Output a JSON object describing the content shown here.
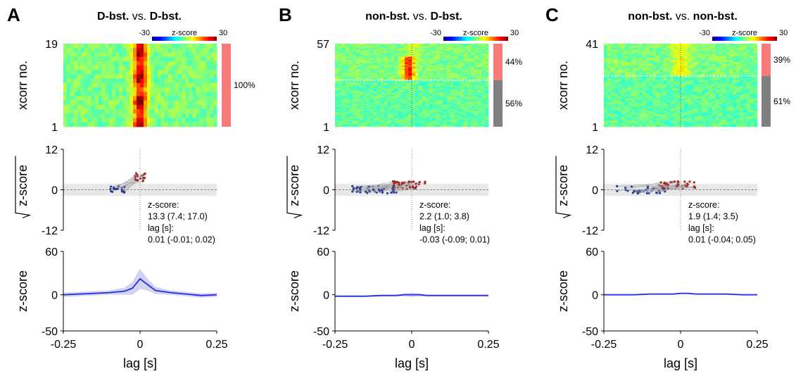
{
  "colors": {
    "positive": "#f77b7b",
    "negative": "#808080",
    "line": "#1f2ee6",
    "band": "#c8c8ee",
    "dot_neg": "#2c3d8f",
    "dot_pos": "#a02828"
  },
  "chart_data": [
    {
      "type": "heatmap+scatter+line",
      "letter": "A",
      "title": {
        "part1": "D-bst.",
        "mid": " vs. ",
        "part2": "D-bst."
      },
      "colorbar": {
        "min_label": "-30",
        "label": "z-score",
        "max_label": "30"
      },
      "heatmap": {
        "ylabel": "xcorr no.",
        "y_top_label": "19",
        "y_bottom_label": "1",
        "n_rows": 19,
        "positive_fraction": 1.0,
        "segments": [
          {
            "label": "100%",
            "fraction": 1.0,
            "class": "positive"
          }
        ],
        "pattern": "strong"
      },
      "scatter": {
        "ylabel": "z-score",
        "yticks": [
          "12",
          "0",
          "-12"
        ],
        "ylim": [
          -12,
          12
        ],
        "annotation": [
          "z-score:",
          "13.3 (7.4; 17.0)",
          "lag [s]:",
          "0.01 (-0.01; 0.02)"
        ],
        "n_pairs": 19,
        "spread": 0.03
      },
      "line": {
        "ylabel": "z-score",
        "yticks": [
          "60",
          "0",
          "-50"
        ],
        "ylim": [
          -50,
          60
        ],
        "xticks": [
          "-0.25",
          "0",
          "0.25"
        ],
        "xlim": [
          -0.25,
          0.25
        ],
        "xlabel": "lag [s]",
        "x": [
          -0.25,
          -0.2,
          -0.15,
          -0.1,
          -0.05,
          -0.025,
          0,
          0.025,
          0.05,
          0.1,
          0.15,
          0.2,
          0.25
        ],
        "y": [
          0,
          1,
          2,
          3,
          5,
          9,
          22,
          14,
          6,
          3,
          1,
          -1,
          0
        ],
        "band": [
          3,
          3,
          3,
          3,
          5,
          9,
          14,
          8,
          5,
          3,
          3,
          3,
          3
        ]
      }
    },
    {
      "type": "heatmap+scatter+line",
      "letter": "B",
      "title": {
        "part1": "non-bst.",
        "mid": " vs. ",
        "part2": "D-bst."
      },
      "colorbar": {
        "min_label": "-30",
        "label": "z-score",
        "max_label": "30"
      },
      "heatmap": {
        "ylabel": "xcorr no.",
        "y_top_label": "57",
        "y_bottom_label": "1",
        "n_rows": 57,
        "positive_fraction": 0.44,
        "segments": [
          {
            "label": "44%",
            "fraction": 0.44,
            "class": "positive"
          },
          {
            "label": "56%",
            "fraction": 0.56,
            "class": "negative"
          }
        ],
        "pattern": "medium"
      },
      "scatter": {
        "ylabel": "z-score",
        "yticks": [
          "12",
          "0",
          "-12"
        ],
        "ylim": [
          -12,
          12
        ],
        "annotation": [
          "z-score:",
          "2.2 (1.0; 3.8)",
          "lag [s]:",
          "-0.03 (-0.09; 0.01)"
        ],
        "n_pairs": 57,
        "spread": 0.09
      },
      "line": {
        "ylabel": "z-score",
        "yticks": [
          "60",
          "0",
          "-50"
        ],
        "ylim": [
          -50,
          60
        ],
        "xticks": [
          "-0.25",
          "0",
          "0.25"
        ],
        "xlim": [
          -0.25,
          0.25
        ],
        "xlabel": "lag [s]",
        "x": [
          -0.25,
          -0.2,
          -0.15,
          -0.1,
          -0.05,
          -0.025,
          0,
          0.025,
          0.05,
          0.1,
          0.15,
          0.2,
          0.25
        ],
        "y": [
          -2,
          -2,
          -2,
          -1,
          -1,
          0,
          0,
          0,
          -1,
          -1,
          -1,
          -1,
          -1
        ],
        "band": [
          1,
          1,
          1,
          1,
          1,
          2,
          3,
          2,
          1,
          1,
          1,
          1,
          1
        ]
      }
    },
    {
      "type": "heatmap+scatter+line",
      "letter": "C",
      "title": {
        "part1": "non-bst.",
        "mid": " vs. ",
        "part2": "non-bst."
      },
      "colorbar": {
        "min_label": "-30",
        "label": "z-score",
        "max_label": "30"
      },
      "heatmap": {
        "ylabel": "xcorr no.",
        "y_top_label": "41",
        "y_bottom_label": "1",
        "n_rows": 41,
        "positive_fraction": 0.39,
        "segments": [
          {
            "label": "39%",
            "fraction": 0.39,
            "class": "positive"
          },
          {
            "label": "61%",
            "fraction": 0.61,
            "class": "negative"
          }
        ],
        "pattern": "weak"
      },
      "scatter": {
        "ylabel": "z-score",
        "yticks": [
          "12",
          "0",
          "-12"
        ],
        "ylim": [
          -12,
          12
        ],
        "annotation": [
          "z-score:",
          "1.9 (1.4; 3.5)",
          "lag [s]:",
          "0.01 (-0.04; 0.05)"
        ],
        "n_pairs": 41,
        "spread": 0.1
      },
      "line": {
        "ylabel": "z-score",
        "yticks": [
          "60",
          "0",
          "-50"
        ],
        "ylim": [
          -50,
          60
        ],
        "xticks": [
          "-0.25",
          "0",
          "0.25"
        ],
        "xlim": [
          -0.25,
          0.25
        ],
        "xlabel": "lag [s]",
        "x": [
          -0.25,
          -0.2,
          -0.15,
          -0.1,
          -0.05,
          -0.025,
          0,
          0.025,
          0.05,
          0.1,
          0.15,
          0.2,
          0.25
        ],
        "y": [
          0,
          0,
          0,
          1,
          1,
          1,
          2,
          2,
          1,
          1,
          1,
          0,
          0
        ],
        "band": [
          1,
          1,
          1,
          1,
          1,
          1,
          1,
          1,
          1,
          1,
          1,
          1,
          1
        ]
      }
    }
  ]
}
